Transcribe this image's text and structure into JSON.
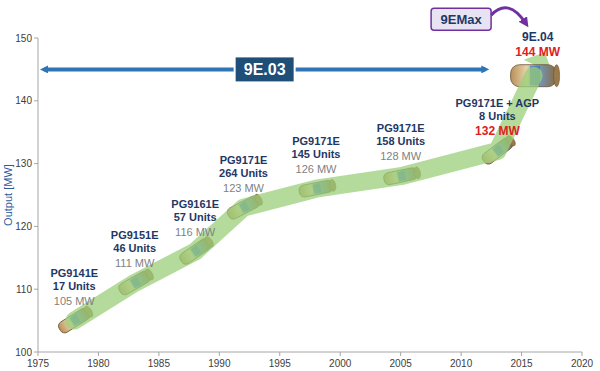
{
  "chart_data": {
    "type": "line",
    "y_label": "Output [MW]",
    "x": [
      1978,
      1983,
      1988,
      1992,
      1998,
      2005,
      2013,
      2016
    ],
    "values": [
      105,
      111,
      116,
      123,
      126,
      128,
      132,
      144
    ],
    "value_labels": [
      "105 MW",
      "111 MW",
      "116 MW",
      "123 MW",
      "126 MW",
      "128 MW",
      "132 MW",
      "144 MW"
    ],
    "model_labels": [
      "PG9141E",
      "PG9151E",
      "PG9161E",
      "PG9171E",
      "PG9171E",
      "PG9171E",
      "PG9171E + AGP",
      "9E.04"
    ],
    "unit_labels": [
      "17 Units",
      "46 Units",
      "57 Units",
      "264 Units",
      "145 Units",
      "158 Units",
      "8 Units",
      null
    ],
    "color": "#9bcf7a",
    "data_labels": true,
    "grid": false,
    "xlim": [
      1975,
      2020
    ],
    "xticks": [
      1975,
      1980,
      1985,
      1990,
      1995,
      2000,
      2005,
      2010,
      2015,
      2020
    ],
    "ylim": [
      100,
      150
    ],
    "yticks": [
      100,
      110,
      120,
      130,
      140,
      150
    ],
    "annotations": [
      {
        "text": "9E.03",
        "x": [
          1975,
          2012
        ],
        "y": 145
      },
      {
        "text": "9EMax",
        "x": 2010,
        "y": 153
      }
    ]
  }
}
